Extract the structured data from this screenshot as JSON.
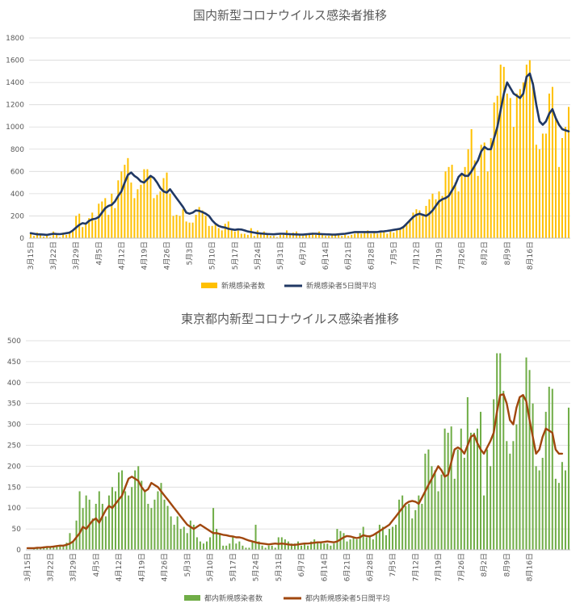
{
  "chart_data": [
    {
      "type": "bar",
      "title": "国内新型コロナウイルス感染者推移",
      "ylim": [
        0,
        1800
      ],
      "yticks": [
        0,
        200,
        400,
        600,
        800,
        1000,
        1200,
        1400,
        1600,
        1800
      ],
      "x_labels": [
        "3月15日",
        "3月22日",
        "3月29日",
        "4月5日",
        "4月12日",
        "4月19日",
        "4月26日",
        "5月3日",
        "5月10日",
        "5月17日",
        "5月24日",
        "5月31日",
        "6月7日",
        "6月14日",
        "6月21日",
        "6月28日",
        "7月5日",
        "7月12日",
        "7月19日",
        "7月26日",
        "8月2日",
        "8月9日",
        "8月16日"
      ],
      "grid": true,
      "legend_position": "bottom",
      "series": [
        {
          "name": "新規感染者数",
          "kind": "bar",
          "color": "#FFC000",
          "values": [
            40,
            20,
            50,
            30,
            15,
            40,
            10,
            60,
            40,
            10,
            50,
            30,
            60,
            60,
            200,
            220,
            100,
            120,
            180,
            230,
            160,
            310,
            330,
            360,
            210,
            400,
            270,
            520,
            600,
            660,
            720,
            500,
            360,
            440,
            480,
            620,
            620,
            560,
            360,
            390,
            420,
            540,
            590,
            400,
            200,
            210,
            200,
            260,
            150,
            140,
            140,
            210,
            280,
            250,
            200,
            110,
            110,
            120,
            90,
            70,
            130,
            150,
            80,
            60,
            70,
            40,
            40,
            30,
            90,
            20,
            70,
            40,
            60,
            40,
            20,
            20,
            10,
            30,
            40,
            70,
            30,
            50,
            60,
            40,
            20,
            40,
            30,
            50,
            30,
            60,
            40,
            20,
            20,
            30,
            40,
            30,
            20,
            30,
            20,
            30,
            40,
            50,
            40,
            50,
            70,
            40,
            60,
            40,
            50,
            60,
            40,
            60,
            50,
            80,
            90,
            110,
            120,
            170,
            230,
            260,
            250,
            220,
            290,
            350,
            400,
            350,
            420,
            380,
            600,
            640,
            660,
            500,
            420,
            570,
            640,
            800,
            980,
            700,
            560,
            840,
            860,
            600,
            900,
            1220,
            1280,
            1560,
            1540,
            1300,
            1260,
            1000,
            1300,
            1340,
            1400,
            1560,
            1600,
            1400,
            840,
            800,
            940,
            940,
            1300,
            1360,
            1080,
            640,
            900,
            1000,
            1180
          ]
        },
        {
          "name": "新規感染者5日間平均",
          "kind": "line",
          "color": "#203864",
          "values": [
            45,
            40,
            35,
            34,
            32,
            30,
            35,
            40,
            38,
            36,
            40,
            45,
            50,
            70,
            95,
            120,
            135,
            130,
            155,
            170,
            175,
            190,
            230,
            270,
            290,
            300,
            330,
            380,
            420,
            500,
            570,
            590,
            560,
            540,
            510,
            500,
            530,
            560,
            540,
            500,
            450,
            420,
            410,
            440,
            400,
            360,
            320,
            280,
            230,
            220,
            230,
            250,
            245,
            235,
            220,
            200,
            160,
            130,
            110,
            100,
            95,
            85,
            80,
            75,
            80,
            78,
            70,
            60,
            55,
            50,
            45,
            42,
            40,
            38,
            36,
            35,
            38,
            40,
            40,
            38,
            36,
            35,
            34,
            33,
            32,
            35,
            38,
            40,
            40,
            38,
            36,
            35,
            34,
            33,
            32,
            35,
            38,
            40,
            45,
            50,
            55,
            55,
            55,
            55,
            55,
            55,
            55,
            55,
            60,
            62,
            65,
            70,
            75,
            80,
            85,
            100,
            130,
            160,
            190,
            210,
            220,
            210,
            200,
            220,
            250,
            290,
            330,
            350,
            360,
            380,
            430,
            480,
            550,
            580,
            560,
            560,
            600,
            650,
            700,
            780,
            820,
            800,
            800,
            900,
            1000,
            1150,
            1300,
            1400,
            1350,
            1300,
            1280,
            1260,
            1300,
            1450,
            1480,
            1380,
            1200,
            1050,
            1020,
            1050,
            1120,
            1160,
            1080,
            1020,
            980,
            970,
            960
          ]
        }
      ]
    },
    {
      "type": "bar",
      "title": "東京都内新型コロナウイルス感染者推移",
      "ylim": [
        0,
        500
      ],
      "yticks": [
        0,
        50,
        100,
        150,
        200,
        250,
        300,
        350,
        400,
        450,
        500
      ],
      "x_labels": [
        "3月15日",
        "3月22日",
        "3月29日",
        "4月5日",
        "4月12日",
        "4月19日",
        "4月26日",
        "5月3日",
        "5月10日",
        "5月17日",
        "5月24日",
        "5月31日",
        "6月7日",
        "6月14日",
        "6月21日",
        "6月28日",
        "7月5日",
        "7月12日",
        "7月19日",
        "7月26日",
        "8月2日",
        "8月9日",
        "8月16日"
      ],
      "grid": true,
      "legend_position": "bottom",
      "series": [
        {
          "name": "都内新規感染者数",
          "kind": "bar",
          "color": "#70AD47",
          "values": [
            0,
            1,
            2,
            3,
            4,
            8,
            5,
            6,
            9,
            10,
            12,
            8,
            17,
            40,
            20,
            70,
            140,
            100,
            130,
            120,
            75,
            110,
            140,
            110,
            80,
            130,
            150,
            140,
            185,
            190,
            140,
            130,
            150,
            190,
            200,
            165,
            140,
            110,
            100,
            120,
            140,
            160,
            120,
            105,
            80,
            60,
            80,
            50,
            55,
            40,
            70,
            60,
            30,
            20,
            15,
            20,
            30,
            100,
            50,
            40,
            10,
            10,
            15,
            30,
            15,
            20,
            10,
            5,
            5,
            20,
            60,
            20,
            10,
            5,
            10,
            10,
            5,
            30,
            30,
            25,
            20,
            15,
            15,
            20,
            10,
            15,
            10,
            20,
            25,
            20,
            20,
            15,
            15,
            10,
            15,
            50,
            45,
            40,
            20,
            25,
            30,
            25,
            40,
            55,
            30,
            35,
            25,
            40,
            60,
            55,
            35,
            50,
            55,
            60,
            120,
            130,
            105,
            110,
            75,
            95,
            130,
            110,
            230,
            240,
            200,
            190,
            140,
            180,
            290,
            280,
            295,
            170,
            240,
            290,
            220,
            365,
            280,
            280,
            290,
            330,
            130,
            240,
            200,
            360,
            470,
            470,
            380,
            260,
            230,
            260,
            300,
            360,
            370,
            460,
            430,
            350,
            200,
            190,
            220,
            330,
            390,
            385,
            170,
            160,
            210,
            190,
            340
          ]
        },
        {
          "name": "都内新規感染者5日間平均",
          "kind": "line",
          "color": "#A0470E",
          "values": [
            4,
            4,
            4,
            5,
            5,
            6,
            7,
            7,
            8,
            9,
            10,
            10,
            12,
            15,
            20,
            30,
            40,
            55,
            50,
            60,
            70,
            75,
            65,
            80,
            95,
            105,
            100,
            110,
            120,
            130,
            150,
            170,
            175,
            170,
            165,
            150,
            140,
            145,
            160,
            155,
            150,
            140,
            130,
            120,
            110,
            100,
            90,
            80,
            70,
            60,
            55,
            50,
            55,
            60,
            55,
            50,
            45,
            40,
            40,
            38,
            36,
            35,
            33,
            32,
            30,
            30,
            28,
            25,
            22,
            20,
            18,
            16,
            15,
            14,
            13,
            14,
            15,
            14,
            15,
            14,
            13,
            12,
            12,
            13,
            14,
            15,
            15,
            16,
            17,
            18,
            18,
            19,
            20,
            19,
            18,
            20,
            25,
            30,
            33,
            32,
            30,
            28,
            30,
            35,
            33,
            32,
            35,
            40,
            45,
            50,
            55,
            60,
            70,
            80,
            90,
            100,
            110,
            115,
            117,
            115,
            110,
            125,
            140,
            155,
            170,
            185,
            200,
            190,
            175,
            180,
            210,
            240,
            245,
            240,
            230,
            250,
            270,
            275,
            255,
            240,
            230,
            245,
            260,
            280,
            330,
            370,
            372,
            350,
            310,
            300,
            340,
            365,
            370,
            355,
            310,
            270,
            230,
            240,
            270,
            290,
            285,
            280,
            240,
            230,
            230
          ]
        }
      ]
    }
  ]
}
